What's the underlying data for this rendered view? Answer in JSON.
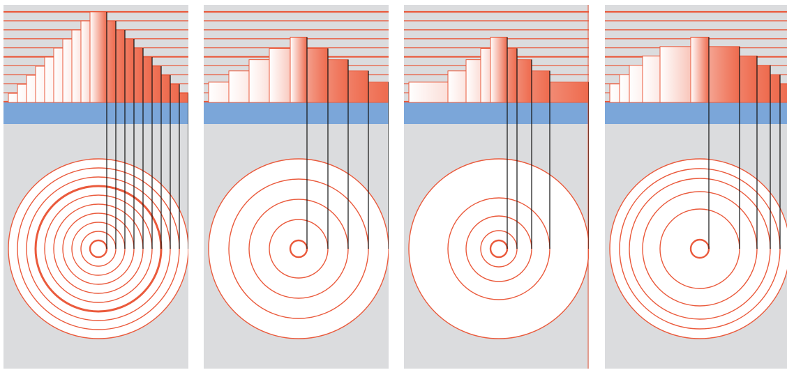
{
  "figure": {
    "colors": {
      "background": "#dbdcde",
      "band": "#7ba6d9",
      "ring": "#ea5a3c",
      "thread": "#111111",
      "terrace_light": "#ffffff",
      "terrace_dark": "#ee6a4d",
      "disc": "#ffffff"
    },
    "panels": [
      {
        "name": "panel-1",
        "radii": [
          12,
          25,
          38,
          51,
          64,
          77,
          90,
          103,
          116,
          129
        ],
        "bold_ring_index": 6,
        "disc_fill": false,
        "tail_line": false
      },
      {
        "name": "panel-2",
        "radii": [
          12,
          42,
          71,
          100,
          129
        ],
        "bold_ring_index": -1,
        "disc_fill": true,
        "tail_line": false
      },
      {
        "name": "panel-3",
        "radii": [
          12,
          26,
          47,
          73,
          129
        ],
        "bold_ring_index": -1,
        "disc_fill": true,
        "tail_line": true
      },
      {
        "name": "panel-4",
        "radii": [
          13,
          57,
          82,
          101,
          115,
          129
        ],
        "bold_ring_index": -1,
        "disc_fill": true,
        "tail_line": false
      }
    ]
  }
}
